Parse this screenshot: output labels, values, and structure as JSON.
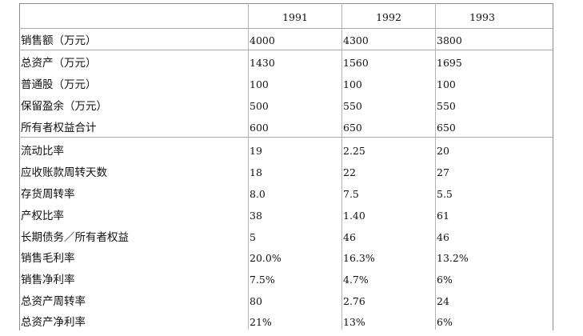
{
  "table": {
    "headers": [
      "",
      "1991",
      "1992",
      "1993"
    ],
    "groups": [
      {
        "rows": [
          {
            "label": "销售额（万元）",
            "values": [
              "4000",
              "4300",
              "3800"
            ]
          }
        ]
      },
      {
        "rows": [
          {
            "label": "总资产（万元）",
            "values": [
              "1430",
              "1560",
              "1695"
            ]
          },
          {
            "label": "普通股（万元）",
            "values": [
              "100",
              "100",
              "100"
            ]
          },
          {
            "label": "保留盈余（万元）",
            "values": [
              "500",
              "550",
              "550"
            ]
          },
          {
            "label": "所有者权益合计",
            "values": [
              "600",
              "650",
              "650"
            ]
          }
        ]
      },
      {
        "rows": [
          {
            "label": "流动比率",
            "values": [
              "19",
              "2.25",
              "20"
            ]
          },
          {
            "label": "应收账款周转天数",
            "values": [
              "18",
              "22",
              "27"
            ]
          },
          {
            "label": "存货周转率",
            "values": [
              "8.0",
              "7.5",
              "5.5"
            ]
          },
          {
            "label": "产权比率",
            "values": [
              "38",
              "1.40",
              "61"
            ]
          },
          {
            "label": "长期债务／所有者权益",
            "values": [
              "5",
              "46",
              "46"
            ]
          },
          {
            "label": "销售毛利率",
            "values": [
              "20.0%",
              "16.3%",
              "13.2%"
            ]
          },
          {
            "label": "销售净利率",
            "values": [
              "7.5%",
              "4.7%",
              "6%"
            ]
          },
          {
            "label": "总资产周转率",
            "values": [
              "80",
              "2.76",
              "24"
            ]
          },
          {
            "label": "总资产净利率",
            "values": [
              "21%",
              "13%",
              "6%"
            ]
          }
        ]
      }
    ]
  }
}
